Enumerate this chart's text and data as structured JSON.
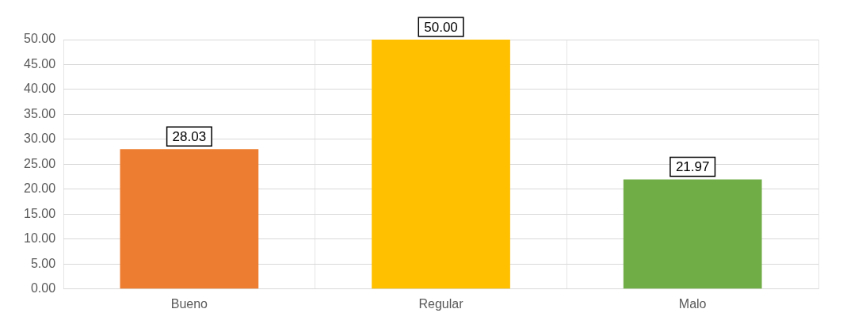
{
  "chart_data": {
    "type": "bar",
    "categories": [
      "Bueno",
      "Regular",
      "Malo"
    ],
    "values": [
      28.03,
      50.0,
      21.97
    ],
    "colors": [
      "#ed7d31",
      "#ffc000",
      "#70ad47"
    ],
    "value_labels": [
      "28.03",
      "50.00",
      "21.97"
    ],
    "ylim": [
      0,
      50
    ],
    "yticks": [
      {
        "value": 0,
        "label": "0.00"
      },
      {
        "value": 5,
        "label": "5.00"
      },
      {
        "value": 10,
        "label": "10.00"
      },
      {
        "value": 15,
        "label": "15.00"
      },
      {
        "value": 20,
        "label": "20.00"
      },
      {
        "value": 25,
        "label": "25.00"
      },
      {
        "value": 30,
        "label": "30.00"
      },
      {
        "value": 35,
        "label": "35.00"
      },
      {
        "value": 40,
        "label": "40.00"
      },
      {
        "value": 45,
        "label": "45.00"
      },
      {
        "value": 50,
        "label": "50.00"
      }
    ],
    "grid": true
  }
}
